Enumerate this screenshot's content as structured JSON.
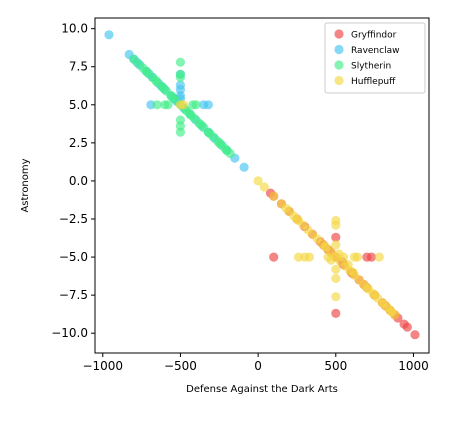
{
  "chart_data": {
    "type": "scatter",
    "xlabel": "Defense Against the Dark Arts",
    "ylabel": "Astronomy",
    "xlim": [
      -1050,
      1100
    ],
    "ylim": [
      -11.3,
      10.7
    ],
    "xticks": [
      -1000,
      -500,
      0,
      500,
      1000
    ],
    "xtick_labels": [
      "−1000",
      "−500",
      "0",
      "500",
      "1000"
    ],
    "yticks": [
      10.0,
      7.5,
      5.0,
      2.5,
      0.0,
      -2.5,
      -5.0,
      -7.5,
      -10.0
    ],
    "ytick_labels": [
      "10.0",
      "7.5",
      "5.0",
      "2.5",
      "0.0",
      "−2.5",
      "−5.0",
      "−7.5",
      "−10.0"
    ],
    "grid": false,
    "legend_position": "upper-right",
    "series": [
      {
        "name": "Gryffindor",
        "color": "#ee4444",
        "points": [
          [
            80,
            -0.8
          ],
          [
            100,
            -1.0
          ],
          [
            150,
            -1.5
          ],
          [
            200,
            -2.0
          ],
          [
            250,
            -2.5
          ],
          [
            300,
            -3.0
          ],
          [
            350,
            -3.5
          ],
          [
            400,
            -4.0
          ],
          [
            450,
            -4.5
          ],
          [
            500,
            -5.0
          ],
          [
            550,
            -5.5
          ],
          [
            600,
            -6.0
          ],
          [
            650,
            -6.5
          ],
          [
            700,
            -7.0
          ],
          [
            750,
            -7.5
          ],
          [
            800,
            -8.0
          ],
          [
            850,
            -8.5
          ],
          [
            900,
            -9.0
          ],
          [
            940,
            -9.4
          ],
          [
            960,
            -9.6
          ],
          [
            1010,
            -10.1
          ],
          [
            100,
            -5.0
          ],
          [
            500,
            -3.7
          ],
          [
            500,
            -8.7
          ],
          [
            700,
            -5.0
          ],
          [
            730,
            -5.0
          ],
          [
            540,
            -5.3
          ],
          [
            610,
            -6.1
          ],
          [
            680,
            -6.8
          ],
          [
            820,
            -8.2
          ],
          [
            880,
            -8.8
          ],
          [
            420,
            -4.2
          ],
          [
            470,
            -4.7
          ]
        ]
      },
      {
        "name": "Ravenclaw",
        "color": "#44c4ee",
        "points": [
          [
            -960,
            9.6
          ],
          [
            -830,
            8.3
          ],
          [
            -800,
            8.0
          ],
          [
            -760,
            7.6
          ],
          [
            -720,
            7.2
          ],
          [
            -680,
            6.8
          ],
          [
            -640,
            6.4
          ],
          [
            -600,
            6.0
          ],
          [
            -560,
            5.6
          ],
          [
            -520,
            5.2
          ],
          [
            -480,
            4.8
          ],
          [
            -440,
            4.4
          ],
          [
            -400,
            4.0
          ],
          [
            -360,
            3.6
          ],
          [
            -320,
            3.2
          ],
          [
            -280,
            2.8
          ],
          [
            -240,
            2.4
          ],
          [
            -200,
            2.0
          ],
          [
            -150,
            1.5
          ],
          [
            -90,
            0.9
          ],
          [
            -690,
            5.0
          ],
          [
            -350,
            5.0
          ],
          [
            -320,
            5.0
          ],
          [
            -500,
            6.3
          ],
          [
            -500,
            6.0
          ],
          [
            -500,
            5.6
          ],
          [
            -500,
            5.4
          ],
          [
            -500,
            7.0
          ],
          [
            -780,
            7.8
          ],
          [
            -700,
            7.0
          ],
          [
            -620,
            6.2
          ],
          [
            -540,
            5.4
          ]
        ]
      },
      {
        "name": "Slytherin",
        "color": "#44ee88",
        "points": [
          [
            -800,
            8.0
          ],
          [
            -770,
            7.7
          ],
          [
            -740,
            7.4
          ],
          [
            -710,
            7.1
          ],
          [
            -680,
            6.8
          ],
          [
            -650,
            6.5
          ],
          [
            -620,
            6.2
          ],
          [
            -590,
            5.9
          ],
          [
            -560,
            5.6
          ],
          [
            -530,
            5.3
          ],
          [
            -500,
            5.0
          ],
          [
            -470,
            4.7
          ],
          [
            -440,
            4.4
          ],
          [
            -410,
            4.1
          ],
          [
            -380,
            3.8
          ],
          [
            -350,
            3.5
          ],
          [
            -320,
            3.2
          ],
          [
            -290,
            2.9
          ],
          [
            -260,
            2.6
          ],
          [
            -230,
            2.3
          ],
          [
            -200,
            2.0
          ],
          [
            -180,
            1.8
          ],
          [
            -500,
            7.8
          ],
          [
            -500,
            7.0
          ],
          [
            -500,
            6.8
          ],
          [
            -500,
            4.0
          ],
          [
            -500,
            3.6
          ],
          [
            -500,
            3.2
          ],
          [
            -600,
            5.0
          ],
          [
            -580,
            5.0
          ],
          [
            -420,
            5.0
          ],
          [
            -400,
            5.0
          ],
          [
            -650,
            5.0
          ],
          [
            -720,
            7.2
          ],
          [
            -660,
            6.6
          ],
          [
            -610,
            6.1
          ],
          [
            -550,
            5.5
          ],
          [
            -460,
            4.6
          ],
          [
            -430,
            4.3
          ],
          [
            -370,
            3.7
          ],
          [
            -310,
            3.1
          ],
          [
            -250,
            2.5
          ],
          [
            -210,
            2.1
          ]
        ]
      },
      {
        "name": "Hufflepuff",
        "color": "#f5d742",
        "points": [
          [
            0,
            0.0
          ],
          [
            40,
            -0.4
          ],
          [
            100,
            -1.0
          ],
          [
            150,
            -1.5
          ],
          [
            180,
            -1.8
          ],
          [
            200,
            -2.0
          ],
          [
            230,
            -2.3
          ],
          [
            260,
            -2.6
          ],
          [
            290,
            -2.9
          ],
          [
            320,
            -3.2
          ],
          [
            350,
            -3.5
          ],
          [
            380,
            -3.8
          ],
          [
            410,
            -4.1
          ],
          [
            440,
            -4.4
          ],
          [
            470,
            -4.7
          ],
          [
            500,
            -5.0
          ],
          [
            530,
            -5.3
          ],
          [
            560,
            -5.6
          ],
          [
            590,
            -5.9
          ],
          [
            620,
            -6.2
          ],
          [
            650,
            -6.5
          ],
          [
            680,
            -6.8
          ],
          [
            710,
            -7.1
          ],
          [
            740,
            -7.4
          ],
          [
            770,
            -7.7
          ],
          [
            800,
            -8.0
          ],
          [
            830,
            -8.3
          ],
          [
            860,
            -8.6
          ],
          [
            880,
            -8.8
          ],
          [
            -500,
            5.0
          ],
          [
            -480,
            5.0
          ],
          [
            500,
            -2.6
          ],
          [
            500,
            -2.9
          ],
          [
            500,
            -7.6
          ],
          [
            260,
            -5.0
          ],
          [
            300,
            -5.0
          ],
          [
            330,
            -5.0
          ],
          [
            620,
            -5.0
          ],
          [
            640,
            -5.0
          ],
          [
            780,
            -5.0
          ],
          [
            500,
            -4.2
          ],
          [
            500,
            -5.8
          ],
          [
            500,
            -6.4
          ],
          [
            450,
            -5.0
          ],
          [
            550,
            -5.0
          ],
          [
            250,
            -2.5
          ],
          [
            700,
            -7.0
          ],
          [
            750,
            -7.5
          ],
          [
            810,
            -8.1
          ],
          [
            850,
            -8.5
          ],
          [
            430,
            -4.3
          ],
          [
            470,
            -5.2
          ],
          [
            520,
            -4.8
          ],
          [
            580,
            -5.5
          ],
          [
            610,
            -6.0
          ]
        ]
      }
    ]
  }
}
